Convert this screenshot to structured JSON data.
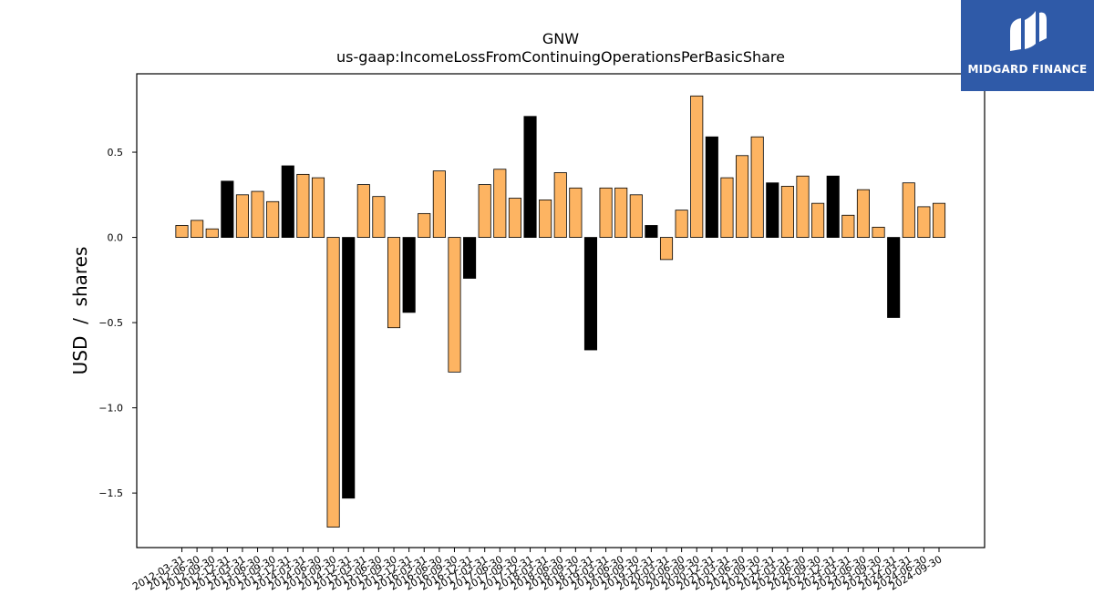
{
  "chart_data": {
    "type": "bar",
    "title": "GNW",
    "subtitle": "us-gaap:IncomeLossFromContinuingOperationsPerBasicShare",
    "ylabel": "USD  /  shares",
    "ylim": [
      -1.82,
      0.96
    ],
    "yticks": [
      0.5,
      0.0,
      -0.5,
      -1.0,
      -1.5
    ],
    "ytick_labels": [
      "0.5",
      "0.0",
      "−0.5",
      "−1.0",
      "−1.5"
    ],
    "grid": false,
    "colors": {
      "quarter": "#fdb462",
      "annual": "#000000",
      "edge": "#000000"
    },
    "categories": [
      "2012-03-31",
      "2012-06-30",
      "2012-09-30",
      "2012-12-31",
      "2013-03-31",
      "2013-06-30",
      "2013-09-30",
      "2013-12-31",
      "2014-03-31",
      "2014-06-30",
      "2014-09-30",
      "2014-12-31",
      "2015-03-31",
      "2015-06-30",
      "2015-09-30",
      "2015-12-31",
      "2016-03-31",
      "2016-06-30",
      "2016-09-30",
      "2016-12-31",
      "2017-03-31",
      "2017-06-30",
      "2017-09-30",
      "2017-12-31",
      "2018-03-31",
      "2018-06-30",
      "2018-09-30",
      "2018-12-31",
      "2019-03-31",
      "2019-06-30",
      "2019-09-30",
      "2019-12-31",
      "2020-03-31",
      "2020-06-30",
      "2020-09-30",
      "2020-12-31",
      "2021-03-31",
      "2021-06-30",
      "2021-09-30",
      "2021-12-31",
      "2022-03-31",
      "2022-06-30",
      "2022-09-30",
      "2022-12-31",
      "2023-03-31",
      "2023-06-30",
      "2023-09-30",
      "2023-12-31",
      "2024-03-31",
      "2024-06-30",
      "2024-09-30"
    ],
    "x_tick_labels": [
      "2012-03-31",
      "2012-06-30",
      "2012-09-30",
      "2012-12-31",
      "2013-03-31",
      "2013-06-30",
      "2013-09-30",
      "2013-12-31",
      "2014-03-31",
      "2014-06-30",
      "2014-09-30",
      "2014-12-31",
      "2015-03-31",
      "2015-06-30",
      "2015-09-30",
      "2015-12-31",
      "2016-03-31",
      "2016-06-30",
      "2016-09-30",
      "2016-12-31",
      "2017-03-31",
      "2017-06-30",
      "2017-09-30",
      "2017-12-31",
      "2018-03-31",
      "2018-06-30",
      "2018-09-30",
      "2018-12-31",
      "2019-03-31",
      "2019-06-30",
      "2019-09-30",
      "2019-12-31",
      "2020-03-31",
      "2020-06-30",
      "2020-09-30",
      "2020-12-31",
      "2021-03-31",
      "2021-06-30",
      "2021-09-30",
      "2021-12-31",
      "2022-03-31",
      "2022-06-30",
      "2022-09-30",
      "2022-12-31",
      "2023-03-31",
      "2023-06-30",
      "2023-09-30",
      "2023-12-31",
      "2024-03-31",
      "2024-06-30",
      "2024-09-30"
    ],
    "values": [
      0.07,
      0.1,
      0.05,
      0.33,
      0.25,
      0.27,
      0.21,
      0.42,
      0.37,
      0.35,
      -1.7,
      -1.53,
      0.31,
      0.24,
      -0.53,
      -0.44,
      0.14,
      0.39,
      -0.79,
      -0.24,
      0.31,
      0.4,
      0.23,
      0.71,
      0.22,
      0.38,
      0.29,
      -0.66,
      0.29,
      0.29,
      0.25,
      0.07,
      -0.13,
      0.16,
      0.83,
      0.59,
      0.35,
      0.48,
      0.59,
      0.32,
      0.3,
      0.36,
      0.2,
      0.36,
      0.13,
      0.28,
      0.06,
      -0.47,
      0.32,
      0.18,
      0.2
    ],
    "annual_flags": [
      0,
      0,
      0,
      1,
      0,
      0,
      0,
      1,
      0,
      0,
      0,
      1,
      0,
      0,
      0,
      1,
      0,
      0,
      0,
      1,
      0,
      0,
      0,
      1,
      0,
      0,
      0,
      1,
      0,
      0,
      0,
      1,
      0,
      0,
      0,
      1,
      0,
      0,
      0,
      1,
      0,
      0,
      0,
      1,
      0,
      0,
      0,
      1,
      0,
      0,
      0
    ]
  },
  "logo": {
    "text": "MIDGARD FINANCE"
  }
}
